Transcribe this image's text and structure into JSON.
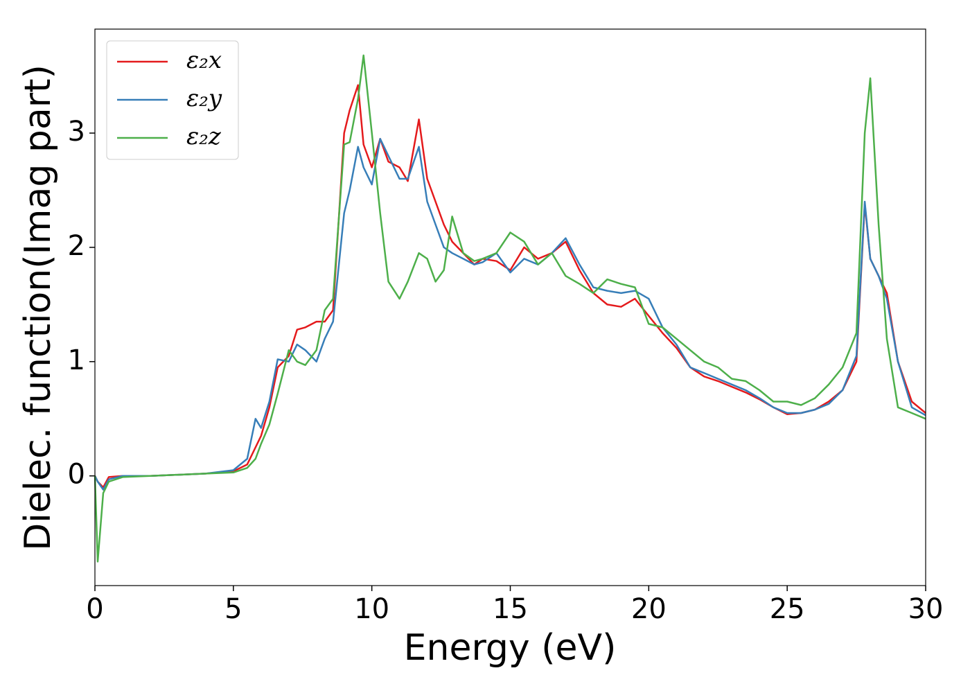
{
  "chart_data": {
    "type": "line",
    "xlabel": "Energy (eV)",
    "ylabel": "Dielec. function(Imag part)",
    "x": [
      0,
      0.1,
      0.3,
      0.5,
      1,
      2,
      3,
      4,
      5,
      5.5,
      5.8,
      6,
      6.3,
      6.6,
      7,
      7.3,
      7.6,
      8,
      8.3,
      8.6,
      9,
      9.2,
      9.5,
      9.7,
      10,
      10.3,
      10.6,
      11,
      11.3,
      11.7,
      12,
      12.3,
      12.6,
      12.9,
      13.3,
      13.7,
      14,
      14.5,
      15,
      15.5,
      16,
      16.5,
      17,
      17.5,
      18,
      18.5,
      19,
      19.5,
      20,
      20.5,
      21,
      21.5,
      22,
      22.5,
      23,
      23.5,
      24,
      24.5,
      25,
      25.5,
      26,
      26.5,
      27,
      27.5,
      27.8,
      28,
      28.3,
      28.6,
      29,
      29.5,
      30
    ],
    "series": [
      {
        "name": "ε₂x",
        "color": "#e41a1c",
        "values": [
          0,
          -0.05,
          -0.1,
          -0.01,
          0,
          0,
          0.01,
          0.02,
          0.04,
          0.1,
          0.25,
          0.35,
          0.6,
          0.95,
          1.05,
          1.28,
          1.3,
          1.35,
          1.35,
          1.45,
          3.0,
          3.2,
          3.42,
          2.9,
          2.7,
          2.95,
          2.75,
          2.7,
          2.58,
          3.12,
          2.6,
          2.4,
          2.2,
          2.05,
          1.95,
          1.85,
          1.9,
          1.88,
          1.8,
          2.0,
          1.9,
          1.95,
          2.05,
          1.8,
          1.6,
          1.5,
          1.48,
          1.55,
          1.4,
          1.25,
          1.12,
          0.95,
          0.87,
          0.83,
          0.78,
          0.73,
          0.67,
          0.6,
          0.54,
          0.55,
          0.58,
          0.65,
          0.75,
          1.0,
          2.38,
          1.9,
          1.75,
          1.6,
          1.0,
          0.65,
          0.55
        ]
      },
      {
        "name": "ε₂y",
        "color": "#377eb8",
        "values": [
          0,
          -0.05,
          -0.12,
          -0.03,
          0,
          0,
          0.01,
          0.02,
          0.05,
          0.15,
          0.5,
          0.42,
          0.65,
          1.02,
          1.0,
          1.15,
          1.1,
          1.0,
          1.2,
          1.35,
          2.3,
          2.5,
          2.88,
          2.7,
          2.55,
          2.95,
          2.8,
          2.6,
          2.6,
          2.88,
          2.4,
          2.2,
          2.0,
          1.95,
          1.9,
          1.85,
          1.87,
          1.95,
          1.78,
          1.9,
          1.85,
          1.95,
          2.08,
          1.85,
          1.65,
          1.62,
          1.6,
          1.62,
          1.55,
          1.3,
          1.15,
          0.95,
          0.9,
          0.85,
          0.8,
          0.75,
          0.68,
          0.6,
          0.55,
          0.55,
          0.58,
          0.63,
          0.75,
          1.05,
          2.4,
          1.9,
          1.75,
          1.55,
          1.0,
          0.6,
          0.53
        ]
      },
      {
        "name": "ε₂z",
        "color": "#4daf4a",
        "values": [
          0,
          -0.75,
          -0.15,
          -0.05,
          -0.01,
          0,
          0.01,
          0.02,
          0.03,
          0.07,
          0.15,
          0.28,
          0.45,
          0.72,
          1.1,
          1.0,
          0.97,
          1.1,
          1.45,
          1.55,
          2.9,
          2.92,
          3.3,
          3.68,
          3.0,
          2.3,
          1.7,
          1.55,
          1.7,
          1.95,
          1.9,
          1.7,
          1.8,
          2.27,
          1.95,
          1.88,
          1.9,
          1.95,
          2.13,
          2.05,
          1.85,
          1.95,
          1.75,
          1.68,
          1.6,
          1.72,
          1.68,
          1.65,
          1.33,
          1.3,
          1.2,
          1.1,
          1.0,
          0.95,
          0.85,
          0.83,
          0.75,
          0.65,
          0.65,
          0.62,
          0.68,
          0.8,
          0.95,
          1.25,
          3.0,
          3.48,
          2.2,
          1.2,
          0.6,
          0.55,
          0.5
        ]
      }
    ],
    "xlim": [
      0,
      30
    ],
    "xticks": [
      0,
      5,
      10,
      15,
      20,
      25,
      30
    ],
    "ylim": [
      -0.96,
      3.91
    ],
    "yticks": [
      0,
      1,
      2,
      3
    ],
    "grid": false,
    "legend": "upper left"
  }
}
